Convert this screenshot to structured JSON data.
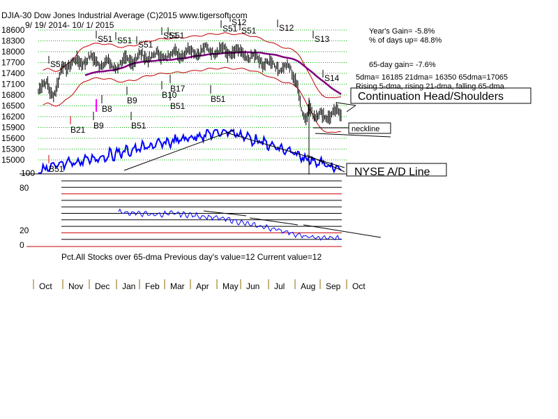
{
  "header": {
    "title": "DJIA-30  Dow Jones Industrial Average   (C)2015 www.tigersoft.com",
    "date_range": "9/ 19/ 2014-  10/ 1/ 2015"
  },
  "stats": {
    "years_gain": "Year's Gain= -5.8%",
    "pct_days_up": "% of days up= 48.8%",
    "gain_65day": "65-day gain= -7.6%",
    "dma_values": "5dma= 16185 21dma= 16350 65dma=17065",
    "dma_trend": "Rising 5-dma, rising 21-dma, falling 65-dma"
  },
  "annotations": {
    "pattern": "Continuation Head/Shoulders",
    "neckline": "neckline",
    "ad_line": "NYSE A/D Line"
  },
  "lower_panel": {
    "caption": "Pct.All Stocks over 65-dma   Previous day's value=12  Current value=12"
  },
  "colors": {
    "price_bars": "#000000",
    "bands": "#c00000",
    "ma65": "#800080",
    "ad_line": "#0000ff",
    "grid": "#00aa00",
    "buy_signal": "#cc0000",
    "pink_signal": "#ff00ff",
    "panel_line_black": "#000000",
    "panel_line_red": "#cc0000"
  },
  "chart_data": [
    {
      "type": "line",
      "title": "DJIA-30  Dow Jones Industrial Average",
      "x": [
        "Oct",
        "Nov",
        "Dec",
        "Jan",
        "Feb",
        "Mar",
        "Apr",
        "May",
        "Jun",
        "Jul",
        "Aug",
        "Sep",
        "Oct"
      ],
      "yticks": [
        15000,
        15300,
        15600,
        15900,
        16200,
        16500,
        16800,
        17100,
        17400,
        17700,
        18000,
        18300,
        18600
      ],
      "ylim": [
        14900,
        18700
      ],
      "grid": true,
      "series": [
        {
          "name": "",
          "values": [
            16900,
            17600,
            17800,
            17600,
            17850,
            17900,
            18000,
            18050,
            17950,
            17700,
            17500,
            16200,
            16300
          ]
        }
      ],
      "signals_sell": [
        "S51",
        "S51",
        "S51",
        "S51",
        "S51",
        "S51",
        "S51",
        "S12",
        "S51",
        "S12",
        "S13",
        "S14"
      ],
      "signals_buy": [
        "B21",
        "B51",
        "B8",
        "B9",
        "B51",
        "B10",
        "B17",
        "B51",
        "B51",
        "B9"
      ]
    },
    {
      "type": "line",
      "title": "Pct.All Stocks over 65-dma",
      "yticks": [
        0,
        20,
        80,
        100
      ],
      "ylim": [
        0,
        100
      ],
      "values": [
        52,
        50,
        48,
        50,
        47,
        44,
        40,
        33,
        28,
        22,
        14,
        12,
        12
      ]
    }
  ]
}
